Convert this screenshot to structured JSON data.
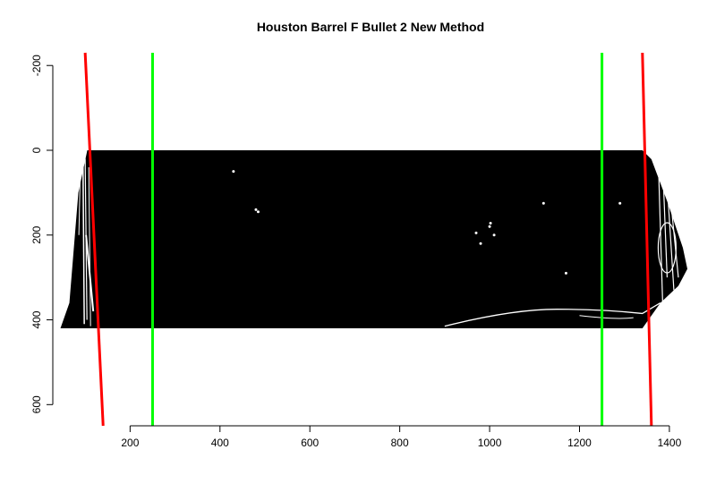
{
  "chart_data": {
    "type": "image-with-lines",
    "title": "Houston Barrel F Bullet 2 New Method",
    "xlabel": "",
    "ylabel": "",
    "xlim": [
      30,
      1440
    ],
    "ylim": [
      650,
      -230
    ],
    "x_ticks": [
      200,
      400,
      600,
      800,
      1000,
      1200,
      1400
    ],
    "y_ticks": [
      -200,
      0,
      200,
      400,
      600
    ],
    "image_region": {
      "x": [
        45,
        1440
      ],
      "y": [
        0,
        420
      ]
    },
    "image_colors": {
      "background": "#000000",
      "speckle": "#ffffff"
    },
    "lines": [
      {
        "name": "",
        "color": "#ff0000",
        "points": [
          [
            100,
            -230
          ],
          [
            140,
            650
          ]
        ]
      },
      {
        "name": "",
        "color": "#00ff00",
        "points": [
          [
            250,
            -230
          ],
          [
            250,
            650
          ]
        ]
      },
      {
        "name": "",
        "color": "#00ff00",
        "points": [
          [
            1250,
            -230
          ],
          [
            1250,
            650
          ]
        ]
      },
      {
        "name": "",
        "color": "#ff0000",
        "points": [
          [
            1340,
            -230
          ],
          [
            1360,
            650
          ]
        ]
      }
    ],
    "grid": false,
    "legend": "none"
  }
}
